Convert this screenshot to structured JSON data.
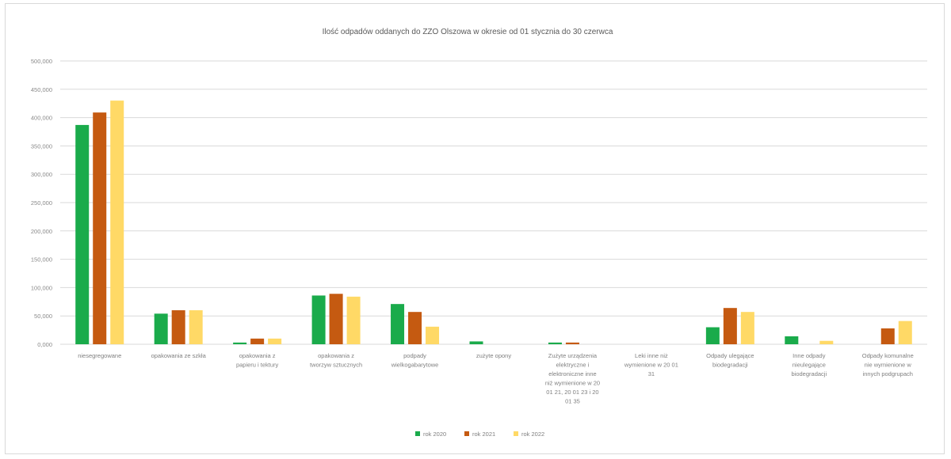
{
  "chart_data": {
    "type": "bar",
    "title": "Ilość odpadów  oddanych do ZZO Olszowa w okresie od 01 stycznia do 30 czerwca",
    "xlabel": "",
    "ylabel": "",
    "ylim": [
      0,
      500000
    ],
    "yticks": [
      "0,000",
      "50,000",
      "100,000",
      "150,000",
      "200,000",
      "250,000",
      "300,000",
      "350,000",
      "400,000",
      "450,000",
      "500,000"
    ],
    "grid": true,
    "legend_position": "bottom",
    "categories": [
      [
        "niesegregowane"
      ],
      [
        "opakowania ze szkła"
      ],
      [
        "opakowania z",
        "papieru i tektury"
      ],
      [
        "opakowania z",
        "tworzyw sztucznych"
      ],
      [
        "podpady",
        "wielkogabarytowe"
      ],
      [
        "zużyte opony"
      ],
      [
        "Zużyte urządzenia",
        "elektryczne i",
        "elektroniczne inne",
        "niż wymienione w 20",
        "01 21, 20 01 23 i 20",
        "01 35"
      ],
      [
        "Leki inne niż",
        "wymienione w 20 01",
        "31"
      ],
      [
        "Odpady ulegające",
        "biodegradacji"
      ],
      [
        "Inne odpady",
        "nieulegające",
        "biodegradacji"
      ],
      [
        "Odpady komunalne",
        "nie wymienione w",
        "innych podgrupach"
      ]
    ],
    "series": [
      {
        "name": "rok 2020",
        "color": "#1aab4b",
        "values": [
          387000,
          54000,
          3000,
          86000,
          71000,
          5000,
          3000,
          0,
          30000,
          14000,
          0
        ]
      },
      {
        "name": "rok 2021",
        "color": "#c55a11",
        "values": [
          409000,
          60000,
          10000,
          89000,
          57000,
          0,
          3000,
          0,
          64000,
          0,
          28000
        ]
      },
      {
        "name": "rok 2022",
        "color": "#ffd966",
        "values": [
          430000,
          60000,
          10000,
          84000,
          31000,
          0,
          0,
          0,
          57000,
          6000,
          41000
        ]
      }
    ]
  }
}
